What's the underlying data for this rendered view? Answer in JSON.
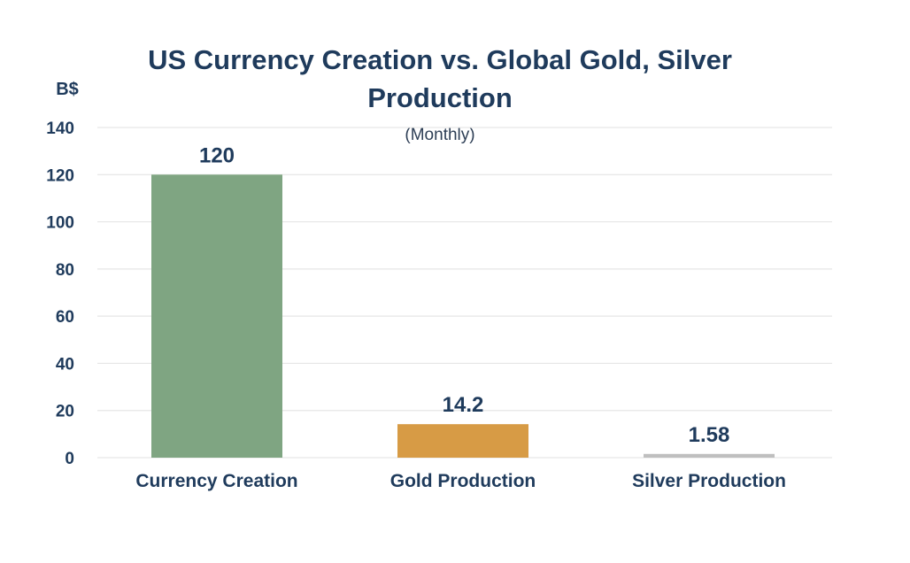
{
  "chart_data": {
    "type": "bar",
    "title_line1": "US Currency Creation vs. Global Gold, Silver",
    "title_line2": "Production",
    "subtitle": "(Monthly)",
    "unit_label": "B$",
    "categories": [
      "Currency Creation",
      "Gold Production",
      "Silver Production"
    ],
    "values": [
      120,
      14.2,
      1.58
    ],
    "value_labels": [
      "120",
      "14.2",
      "1.58"
    ],
    "yticks": [
      "0",
      "20",
      "40",
      "60",
      "80",
      "100",
      "120",
      "140"
    ],
    "ylim": [
      0,
      140
    ],
    "grid": true,
    "legend": "none",
    "colors": [
      "#7fa582",
      "#d79b45",
      "#bfbfbf"
    ],
    "grid_color": "#e6e6e6",
    "text_color": "#1f3b5c"
  }
}
